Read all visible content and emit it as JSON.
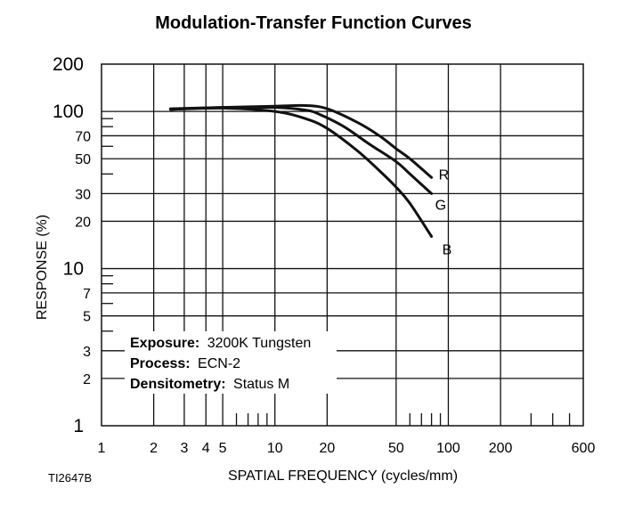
{
  "chart_data": {
    "type": "line",
    "title": "Modulation-Transfer Function Curves",
    "xlabel": "SPATIAL FREQUENCY (cycles/mm)",
    "ylabel": "RESPONSE (%)",
    "x_scale": "log",
    "y_scale": "log",
    "xlim": [
      1,
      600
    ],
    "ylim": [
      1,
      200
    ],
    "grid": true,
    "x_ticks": [
      {
        "value": 1,
        "label": "1"
      },
      {
        "value": 2,
        "label": "2"
      },
      {
        "value": 3,
        "label": "3"
      },
      {
        "value": 4,
        "label": "4"
      },
      {
        "value": 5,
        "label": "5"
      },
      {
        "value": 10,
        "label": "10"
      },
      {
        "value": 20,
        "label": "20"
      },
      {
        "value": 50,
        "label": "50"
      },
      {
        "value": 100,
        "label": "100"
      },
      {
        "value": 200,
        "label": "200"
      },
      {
        "value": 600,
        "label": "600"
      }
    ],
    "y_ticks_major": [
      {
        "value": 1,
        "label": "1"
      },
      {
        "value": 10,
        "label": "10"
      },
      {
        "value": 100,
        "label": "100"
      },
      {
        "value": 200,
        "label": "200"
      }
    ],
    "y_ticks_minor": [
      {
        "value": 2,
        "label": "2"
      },
      {
        "value": 3,
        "label": "3"
      },
      {
        "value": 5,
        "label": "5"
      },
      {
        "value": 7,
        "label": "7"
      },
      {
        "value": 20,
        "label": "20"
      },
      {
        "value": 30,
        "label": "30"
      },
      {
        "value": 50,
        "label": "50"
      },
      {
        "value": 70,
        "label": "70"
      }
    ],
    "series": [
      {
        "name": "R",
        "color": "#111111",
        "x": [
          2.5,
          5,
          10,
          15,
          20,
          30,
          40,
          50,
          60,
          80
        ],
        "y": [
          104,
          106,
          108,
          109,
          104,
          85,
          70,
          58,
          50,
          38
        ]
      },
      {
        "name": "G",
        "color": "#111111",
        "x": [
          2.5,
          5,
          10,
          15,
          18,
          25,
          35,
          50,
          60,
          80
        ],
        "y": [
          103,
          106,
          106,
          102,
          96,
          80,
          62,
          48,
          40,
          30
        ]
      },
      {
        "name": "B",
        "color": "#111111",
        "x": [
          2.5,
          5,
          10,
          15,
          20,
          30,
          40,
          50,
          60,
          80
        ],
        "y": [
          103,
          105,
          100,
          90,
          78,
          56,
          42,
          33,
          26,
          16
        ]
      }
    ],
    "annotations": [
      {
        "key": "Exposure:",
        "value": "3200K Tungsten"
      },
      {
        "key": "Process:",
        "value": "ECN-2"
      },
      {
        "key": "Densitometry:",
        "value": "Status M"
      }
    ]
  },
  "figure_id": "TI2647B"
}
